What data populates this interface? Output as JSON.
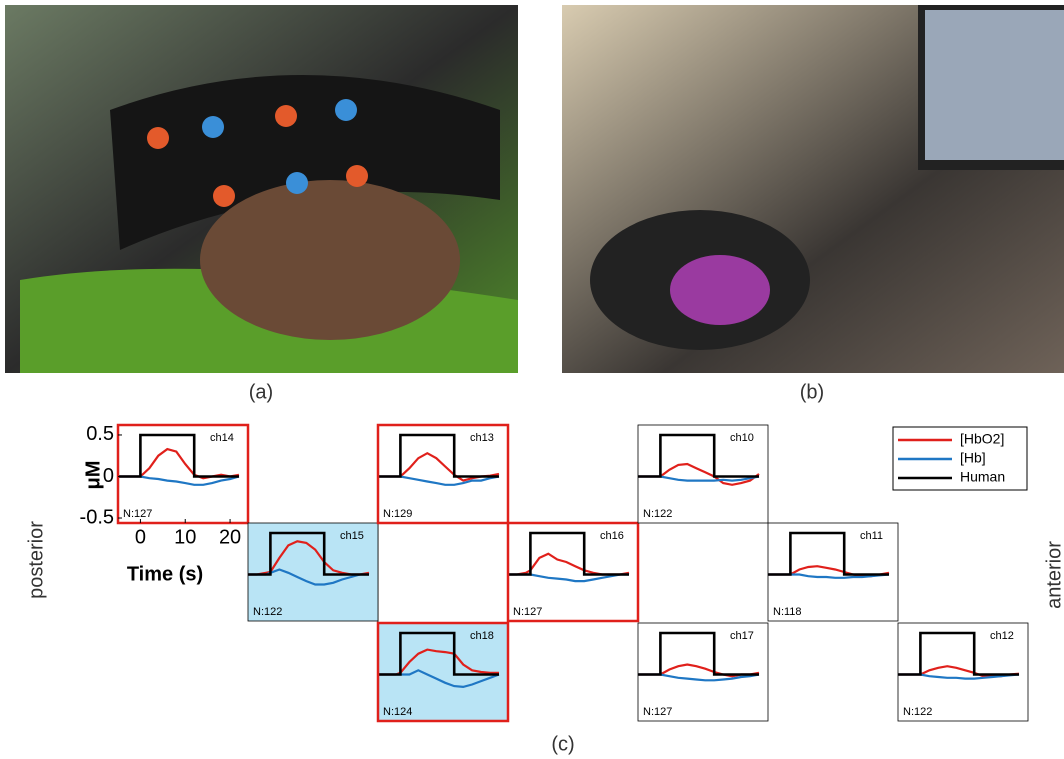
{
  "panels": {
    "a": "(a)",
    "b": "(b)",
    "c": "(c)"
  },
  "side_labels": {
    "left": "posterior",
    "right": "anterior"
  },
  "chart_data": [
    {
      "type": "line",
      "title": "ch14",
      "note": "N:127",
      "border": "#e0201b",
      "ylabel": "μM",
      "xlabel": "Time (s)",
      "x": [
        -5,
        -3,
        -1,
        0,
        0,
        2,
        4,
        6,
        8,
        10,
        12,
        12,
        14,
        16,
        18,
        20,
        22
      ],
      "xlim": [
        -5,
        24
      ],
      "ylim": [
        -0.56,
        0.62
      ],
      "xticks": [
        0,
        10,
        20
      ],
      "yticks": [
        -0.5,
        0,
        0.5
      ],
      "series": [
        {
          "name": "[HbO2]",
          "color": "#e0201b",
          "values": [
            0,
            0,
            0,
            0,
            0,
            0.1,
            0.25,
            0.33,
            0.3,
            0.15,
            0.02,
            0.02,
            -0.02,
            0,
            0.02,
            0,
            0.02
          ]
        },
        {
          "name": "[Hb]",
          "color": "#1f77c4",
          "values": [
            0,
            0,
            0,
            0,
            0,
            -0.02,
            -0.03,
            -0.05,
            -0.06,
            -0.08,
            -0.1,
            -0.1,
            -0.1,
            -0.08,
            -0.05,
            -0.03,
            0
          ]
        },
        {
          "name": "Human",
          "color": "#000000",
          "values": [
            0,
            0,
            0,
            0,
            0.5,
            0.5,
            0.5,
            0.5,
            0.5,
            0.5,
            0.5,
            0,
            0,
            0,
            0,
            0,
            0
          ]
        }
      ]
    },
    {
      "type": "line",
      "title": "ch15",
      "note": "N:122",
      "fill": "#b9e4f5",
      "x": [
        -5,
        -3,
        -1,
        0,
        0,
        2,
        4,
        6,
        8,
        10,
        12,
        12,
        14,
        16,
        18,
        20,
        22
      ],
      "xlim": [
        -5,
        24
      ],
      "ylim": [
        -0.56,
        0.62
      ],
      "series": [
        {
          "name": "[HbO2]",
          "color": "#e0201b",
          "values": [
            0,
            0,
            0.02,
            0.03,
            0.03,
            0.2,
            0.35,
            0.4,
            0.38,
            0.3,
            0.15,
            0.15,
            0.05,
            0.02,
            0,
            0,
            0.02
          ]
        },
        {
          "name": "[Hb]",
          "color": "#1f77c4",
          "values": [
            0,
            0,
            0,
            0.02,
            0.02,
            0.06,
            0.02,
            -0.03,
            -0.08,
            -0.12,
            -0.12,
            -0.12,
            -0.1,
            -0.06,
            -0.03,
            0,
            0
          ]
        },
        {
          "name": "Human",
          "color": "#000000",
          "values": [
            0,
            0,
            0,
            0,
            0.5,
            0.5,
            0.5,
            0.5,
            0.5,
            0.5,
            0.5,
            0,
            0,
            0,
            0,
            0,
            0
          ]
        }
      ]
    },
    {
      "type": "line",
      "title": "ch13",
      "note": "N:129",
      "border": "#e0201b",
      "x": [
        -5,
        -3,
        -1,
        0,
        0,
        2,
        4,
        6,
        8,
        10,
        12,
        12,
        14,
        16,
        18,
        20,
        22
      ],
      "xlim": [
        -5,
        24
      ],
      "ylim": [
        -0.56,
        0.62
      ],
      "series": [
        {
          "name": "[HbO2]",
          "color": "#e0201b",
          "values": [
            0,
            0,
            0,
            0,
            0,
            0.1,
            0.22,
            0.28,
            0.22,
            0.12,
            0.02,
            0.02,
            -0.05,
            -0.02,
            0,
            0.01,
            0.03
          ]
        },
        {
          "name": "[Hb]",
          "color": "#1f77c4",
          "values": [
            0,
            0,
            0,
            0,
            0,
            -0.02,
            -0.04,
            -0.06,
            -0.08,
            -0.1,
            -0.1,
            -0.1,
            -0.08,
            -0.05,
            -0.05,
            -0.02,
            0
          ]
        },
        {
          "name": "Human",
          "color": "#000000",
          "values": [
            0,
            0,
            0,
            0,
            0.5,
            0.5,
            0.5,
            0.5,
            0.5,
            0.5,
            0.5,
            0,
            0,
            0,
            0,
            0,
            0
          ]
        }
      ]
    },
    {
      "type": "line",
      "title": "ch18",
      "note": "N:124",
      "border": "#e0201b",
      "fill": "#b9e4f5",
      "x": [
        -5,
        -3,
        -1,
        0,
        0,
        2,
        4,
        6,
        8,
        10,
        12,
        12,
        14,
        16,
        18,
        20,
        22
      ],
      "xlim": [
        -5,
        24
      ],
      "ylim": [
        -0.56,
        0.62
      ],
      "series": [
        {
          "name": "[HbO2]",
          "color": "#e0201b",
          "values": [
            0,
            0,
            0,
            0.02,
            0.02,
            0.15,
            0.25,
            0.3,
            0.28,
            0.27,
            0.25,
            0.25,
            0.12,
            0.05,
            0.03,
            0.02,
            0.02
          ]
        },
        {
          "name": "[Hb]",
          "color": "#1f77c4",
          "values": [
            0,
            0,
            0,
            0,
            0,
            0,
            0.05,
            0,
            -0.05,
            -0.1,
            -0.14,
            -0.14,
            -0.15,
            -0.12,
            -0.08,
            -0.04,
            0
          ]
        },
        {
          "name": "Human",
          "color": "#000000",
          "values": [
            0,
            0,
            0,
            0,
            0.5,
            0.5,
            0.5,
            0.5,
            0.5,
            0.5,
            0.5,
            0,
            0,
            0,
            0,
            0,
            0
          ]
        }
      ]
    },
    {
      "type": "line",
      "title": "ch16",
      "note": "N:127",
      "border": "#e0201b",
      "x": [
        -5,
        -3,
        -1,
        0,
        0,
        2,
        4,
        6,
        8,
        10,
        12,
        12,
        14,
        16,
        18,
        20,
        22
      ],
      "xlim": [
        -5,
        24
      ],
      "ylim": [
        -0.56,
        0.62
      ],
      "series": [
        {
          "name": "[HbO2]",
          "color": "#e0201b",
          "values": [
            0,
            0,
            0.02,
            0.05,
            0.05,
            0.2,
            0.25,
            0.18,
            0.15,
            0.1,
            0.05,
            0.05,
            0.02,
            0,
            0,
            0,
            0.02
          ]
        },
        {
          "name": "[Hb]",
          "color": "#1f77c4",
          "values": [
            0,
            0,
            0,
            0,
            0,
            -0.02,
            -0.04,
            -0.05,
            -0.06,
            -0.08,
            -0.08,
            -0.08,
            -0.06,
            -0.04,
            -0.02,
            0,
            0
          ]
        },
        {
          "name": "Human",
          "color": "#000000",
          "values": [
            0,
            0,
            0,
            0,
            0.5,
            0.5,
            0.5,
            0.5,
            0.5,
            0.5,
            0.5,
            0,
            0,
            0,
            0,
            0,
            0
          ]
        }
      ]
    },
    {
      "type": "line",
      "title": "ch10",
      "note": "N:122",
      "x": [
        -5,
        -3,
        -1,
        0,
        0,
        2,
        4,
        6,
        8,
        10,
        12,
        12,
        14,
        16,
        18,
        20,
        22
      ],
      "xlim": [
        -5,
        24
      ],
      "ylim": [
        -0.56,
        0.62
      ],
      "series": [
        {
          "name": "[HbO2]",
          "color": "#e0201b",
          "values": [
            0,
            0,
            0,
            0,
            0,
            0.08,
            0.14,
            0.15,
            0.1,
            0.05,
            0,
            0,
            -0.08,
            -0.1,
            -0.08,
            -0.05,
            0.03
          ]
        },
        {
          "name": "[Hb]",
          "color": "#1f77c4",
          "values": [
            0,
            0,
            0,
            0,
            0,
            -0.02,
            -0.04,
            -0.05,
            -0.05,
            -0.05,
            -0.05,
            -0.05,
            -0.04,
            -0.05,
            -0.04,
            -0.02,
            0
          ]
        },
        {
          "name": "Human",
          "color": "#000000",
          "values": [
            0,
            0,
            0,
            0,
            0.5,
            0.5,
            0.5,
            0.5,
            0.5,
            0.5,
            0.5,
            0,
            0,
            0,
            0,
            0,
            0
          ]
        }
      ]
    },
    {
      "type": "line",
      "title": "ch17",
      "note": "N:127",
      "x": [
        -5,
        -3,
        -1,
        0,
        0,
        2,
        4,
        6,
        8,
        10,
        12,
        12,
        14,
        16,
        18,
        20,
        22
      ],
      "xlim": [
        -5,
        24
      ],
      "ylim": [
        -0.56,
        0.62
      ],
      "series": [
        {
          "name": "[HbO2]",
          "color": "#e0201b",
          "values": [
            0,
            0,
            0,
            0,
            0,
            0.06,
            0.1,
            0.12,
            0.1,
            0.07,
            0.03,
            0.03,
            0,
            -0.02,
            0,
            0,
            0.02
          ]
        },
        {
          "name": "[Hb]",
          "color": "#1f77c4",
          "values": [
            0,
            0,
            0,
            0,
            0,
            -0.02,
            -0.04,
            -0.05,
            -0.06,
            -0.07,
            -0.07,
            -0.07,
            -0.06,
            -0.05,
            -0.03,
            -0.02,
            0
          ]
        },
        {
          "name": "Human",
          "color": "#000000",
          "values": [
            0,
            0,
            0,
            0,
            0.5,
            0.5,
            0.5,
            0.5,
            0.5,
            0.5,
            0.5,
            0,
            0,
            0,
            0,
            0,
            0
          ]
        }
      ]
    },
    {
      "type": "line",
      "title": "ch11",
      "note": "N:118",
      "x": [
        -5,
        -3,
        -1,
        0,
        0,
        2,
        4,
        6,
        8,
        10,
        12,
        12,
        14,
        16,
        18,
        20,
        22
      ],
      "xlim": [
        -5,
        24
      ],
      "ylim": [
        -0.56,
        0.62
      ],
      "series": [
        {
          "name": "[HbO2]",
          "color": "#e0201b",
          "values": [
            0,
            0,
            0,
            0,
            0,
            0.06,
            0.09,
            0.1,
            0.08,
            0.06,
            0.03,
            0.03,
            0,
            -0.02,
            -0.02,
            0,
            0.02
          ]
        },
        {
          "name": "[Hb]",
          "color": "#1f77c4",
          "values": [
            0,
            0,
            0,
            0,
            0,
            0,
            -0.02,
            -0.03,
            -0.03,
            -0.04,
            -0.04,
            -0.04,
            -0.03,
            -0.03,
            -0.02,
            -0.01,
            0
          ]
        },
        {
          "name": "Human",
          "color": "#000000",
          "values": [
            0,
            0,
            0,
            0,
            0.5,
            0.5,
            0.5,
            0.5,
            0.5,
            0.5,
            0.5,
            0,
            0,
            0,
            0,
            0,
            0
          ]
        }
      ]
    },
    {
      "type": "line",
      "title": "ch12",
      "note": "N:122",
      "x": [
        -5,
        -3,
        -1,
        0,
        0,
        2,
        4,
        6,
        8,
        10,
        12,
        12,
        14,
        16,
        18,
        20,
        22
      ],
      "xlim": [
        -5,
        24
      ],
      "ylim": [
        -0.56,
        0.62
      ],
      "series": [
        {
          "name": "[HbO2]",
          "color": "#e0201b",
          "values": [
            0,
            0,
            0,
            0,
            0,
            0.05,
            0.08,
            0.1,
            0.08,
            0.05,
            0.02,
            0.02,
            -0.02,
            -0.02,
            -0.02,
            0,
            0.01
          ]
        },
        {
          "name": "[Hb]",
          "color": "#1f77c4",
          "values": [
            0,
            0,
            0,
            0,
            0,
            -0.02,
            -0.03,
            -0.04,
            -0.04,
            -0.05,
            -0.05,
            -0.05,
            -0.04,
            -0.03,
            -0.02,
            -0.01,
            0
          ]
        },
        {
          "name": "Human",
          "color": "#000000",
          "values": [
            0,
            0,
            0,
            0,
            0.5,
            0.5,
            0.5,
            0.5,
            0.5,
            0.5,
            0.5,
            0,
            0,
            0,
            0,
            0,
            0
          ]
        }
      ]
    }
  ]
}
